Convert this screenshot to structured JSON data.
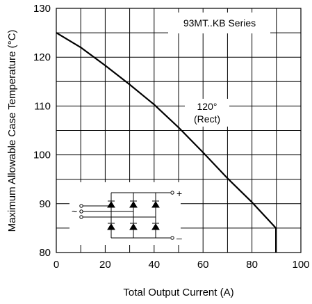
{
  "chart_data": {
    "type": "line",
    "title": "",
    "xlabel": "Total Output Current (A)",
    "ylabel": "Maximum Allowable Case Temperature (°C)",
    "xlim": [
      0,
      100
    ],
    "ylim": [
      80,
      130
    ],
    "x_ticks": [
      0,
      20,
      40,
      60,
      80,
      100
    ],
    "y_ticks": [
      80,
      90,
      100,
      110,
      120,
      130
    ],
    "x_tick_labels": [
      "0",
      "20",
      "40",
      "60",
      "80",
      "100"
    ],
    "y_tick_labels": [
      "80",
      "90",
      "100",
      "110",
      "120",
      "130"
    ],
    "grid": true,
    "legend_text": "93MT..KB Series",
    "series": [
      {
        "name": "",
        "color": "#000000",
        "x": [
          0,
          10,
          20,
          30,
          40,
          50,
          60,
          70,
          80,
          89.8,
          89.8
        ],
        "y": [
          125,
          122,
          118.3,
          114.4,
          110.3,
          105.6,
          100.5,
          95.2,
          90.3,
          85,
          80
        ]
      }
    ],
    "annotations": [
      {
        "line1": "120°",
        "line2": "(Rect)"
      }
    ],
    "inset": {
      "plus_label": "+",
      "minus_label": "–",
      "ac_label": "~"
    }
  }
}
